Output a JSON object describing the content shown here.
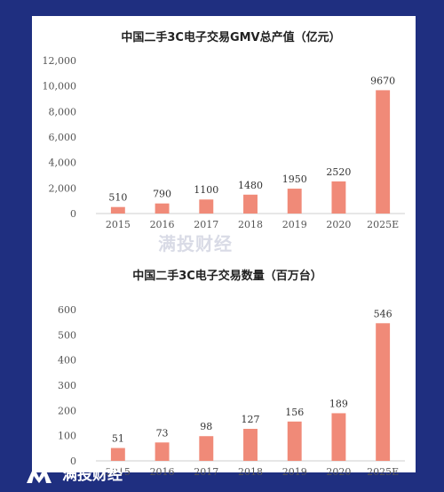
{
  "watermark": "满投财经",
  "footer": {
    "brand": "满投财经"
  },
  "colors": {
    "bar": "#f08a78",
    "background": "#1f2f80",
    "card": "#ffffff"
  },
  "chart_data": [
    {
      "type": "bar",
      "title": "中国二手3C电子交易GMV总产值（亿元）",
      "categories": [
        "2015",
        "2016",
        "2017",
        "2018",
        "2019",
        "2020",
        "2025E"
      ],
      "values": [
        510,
        790,
        1100,
        1480,
        1950,
        2520,
        9670
      ],
      "data_labels": [
        "510",
        "790",
        "1100",
        "1480",
        "1950",
        "2520",
        "9670"
      ],
      "yticks": [
        "0",
        "2,000",
        "4,000",
        "6,000",
        "8,000",
        "10,000",
        "12,000"
      ],
      "ylim": [
        0,
        12000
      ],
      "grid": false
    },
    {
      "type": "bar",
      "title": "中国二手3C电子交易数量（百万台）",
      "categories": [
        "2015",
        "2016",
        "2017",
        "2018",
        "2019",
        "2020",
        "2025E"
      ],
      "values": [
        51,
        73,
        98,
        127,
        156,
        189,
        546
      ],
      "data_labels": [
        "51",
        "73",
        "98",
        "127",
        "156",
        "189",
        "546"
      ],
      "yticks": [
        "0",
        "100",
        "200",
        "300",
        "400",
        "500",
        "600"
      ],
      "ylim": [
        0,
        600
      ],
      "grid": false
    }
  ]
}
